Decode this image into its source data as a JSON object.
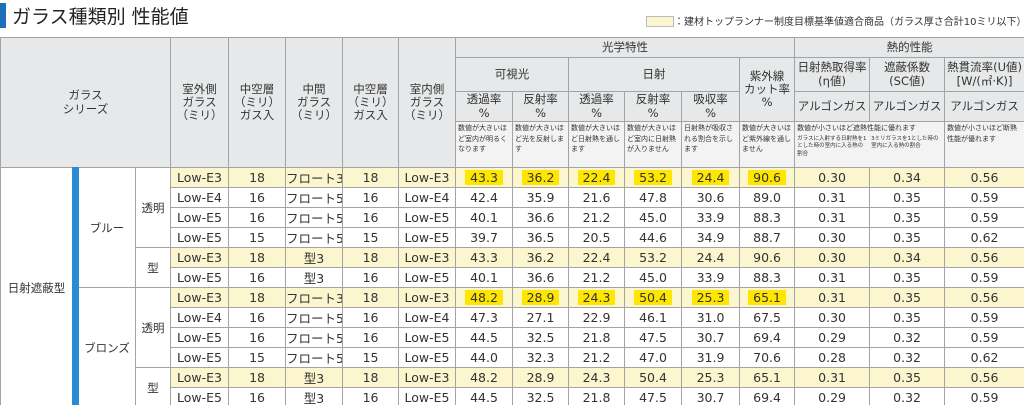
{
  "header": {
    "title": "ガラス種類別 性能値",
    "legend": "：建材トップランナー制度目標基準値適合商品（ガラス厚さ合計10ミリ以下）"
  },
  "table": {
    "highlight_color": "#fcf6cf",
    "mark_color": "#ffe600",
    "head": {
      "series": "ガラス\nシリーズ",
      "glass": [
        "室外側\nガラス\n（ミリ）",
        "中空層\n（ミリ）\nガス入",
        "中間\nガラス\n（ミリ）",
        "中空層\n（ミリ）\nガス入",
        "室内側\nガラス\n（ミリ）"
      ],
      "optical": {
        "title": "光学特性",
        "visible": "可視光",
        "solar": "日射",
        "uv": "紫外線\nカット率\n%",
        "columns": [
          "透過率\n%",
          "反射率\n%",
          "透過率\n%",
          "反射率\n%",
          "吸収率\n%"
        ],
        "notes": [
          "数値が大きいほど室内が明るくなります",
          "数値が大きいほど光を反射します",
          "数値が大きいほど日射熱を通します",
          "数値が大きいほど室内に日射熱が入りません",
          "日射熱が吸収される割合を示します",
          "数値が大きいほど紫外線を通しません"
        ]
      },
      "thermal": {
        "title": "熱的性能",
        "columns": [
          "日射熱取得率\n(η値)",
          "遮蔽係数\n(SC値)",
          "熱貫流率(U値)\n[W/(㎡·K)]"
        ],
        "gas": [
          "アルゴンガス",
          "アルゴンガス",
          "アルゴンガス"
        ],
        "note_shading": "数値が小さいほど遮熱性能に優れます",
        "sub_notes": [
          "ガラスに入射する日射熱を1とした時の室内に入る熱の割合",
          "3ミリガラスを1とした時の室内に入る熱の割合"
        ],
        "note_insulation": "数値が小さいほど断熱性能が優れます"
      }
    },
    "groups": [
      {
        "label": "日射遮蔽型",
        "colors": [
          {
            "label": "ブルー",
            "kinds": [
              {
                "label": "透明",
                "rows": [
                  {
                    "highlight": true,
                    "marked": true,
                    "cells": [
                      "Low-E3",
                      "18",
                      "フロート3",
                      "18",
                      "Low-E3",
                      "43.3",
                      "36.2",
                      "22.4",
                      "53.2",
                      "24.4",
                      "90.6",
                      "0.30",
                      "0.34",
                      "0.56"
                    ]
                  },
                  {
                    "highlight": false,
                    "marked": false,
                    "cells": [
                      "Low-E4",
                      "16",
                      "フロート5",
                      "16",
                      "Low-E4",
                      "42.4",
                      "35.9",
                      "21.6",
                      "47.8",
                      "30.6",
                      "89.0",
                      "0.31",
                      "0.35",
                      "0.59"
                    ]
                  },
                  {
                    "highlight": false,
                    "marked": false,
                    "cells": [
                      "Low-E5",
                      "16",
                      "フロート5",
                      "16",
                      "Low-E5",
                      "40.1",
                      "36.6",
                      "21.2",
                      "45.0",
                      "33.9",
                      "88.3",
                      "0.31",
                      "0.35",
                      "0.59"
                    ]
                  },
                  {
                    "highlight": false,
                    "marked": false,
                    "cells": [
                      "Low-E5",
                      "15",
                      "フロート5",
                      "15",
                      "Low-E5",
                      "39.7",
                      "36.5",
                      "20.5",
                      "44.6",
                      "34.9",
                      "88.7",
                      "0.30",
                      "0.35",
                      "0.62"
                    ]
                  }
                ]
              },
              {
                "label": "型",
                "rows": [
                  {
                    "highlight": true,
                    "marked": false,
                    "cells": [
                      "Low-E3",
                      "18",
                      "型3",
                      "18",
                      "Low-E3",
                      "43.3",
                      "36.2",
                      "22.4",
                      "53.2",
                      "24.4",
                      "90.6",
                      "0.30",
                      "0.34",
                      "0.56"
                    ]
                  },
                  {
                    "highlight": false,
                    "marked": false,
                    "cells": [
                      "Low-E5",
                      "16",
                      "型3",
                      "16",
                      "Low-E5",
                      "40.1",
                      "36.6",
                      "21.2",
                      "45.0",
                      "33.9",
                      "88.3",
                      "0.31",
                      "0.35",
                      "0.59"
                    ]
                  }
                ]
              }
            ]
          },
          {
            "label": "ブロンズ",
            "kinds": [
              {
                "label": "透明",
                "rows": [
                  {
                    "highlight": true,
                    "marked": true,
                    "cells": [
                      "Low-E3",
                      "18",
                      "フロート3",
                      "18",
                      "Low-E3",
                      "48.2",
                      "28.9",
                      "24.3",
                      "50.4",
                      "25.3",
                      "65.1",
                      "0.31",
                      "0.35",
                      "0.56"
                    ]
                  },
                  {
                    "highlight": false,
                    "marked": false,
                    "cells": [
                      "Low-E4",
                      "16",
                      "フロート5",
                      "16",
                      "Low-E4",
                      "47.3",
                      "27.1",
                      "22.9",
                      "46.1",
                      "31.0",
                      "67.5",
                      "0.30",
                      "0.35",
                      "0.59"
                    ]
                  },
                  {
                    "highlight": false,
                    "marked": false,
                    "cells": [
                      "Low-E5",
                      "16",
                      "フロート5",
                      "16",
                      "Low-E5",
                      "44.5",
                      "32.5",
                      "21.8",
                      "47.5",
                      "30.7",
                      "69.4",
                      "0.29",
                      "0.32",
                      "0.59"
                    ]
                  },
                  {
                    "highlight": false,
                    "marked": false,
                    "cells": [
                      "Low-E5",
                      "15",
                      "フロート5",
                      "15",
                      "Low-E5",
                      "44.0",
                      "32.3",
                      "21.2",
                      "47.0",
                      "31.9",
                      "70.6",
                      "0.28",
                      "0.32",
                      "0.62"
                    ]
                  }
                ]
              },
              {
                "label": "型",
                "rows": [
                  {
                    "highlight": true,
                    "marked": false,
                    "cells": [
                      "Low-E3",
                      "18",
                      "型3",
                      "18",
                      "Low-E3",
                      "48.2",
                      "28.9",
                      "24.3",
                      "50.4",
                      "25.3",
                      "65.1",
                      "0.31",
                      "0.35",
                      "0.56"
                    ]
                  },
                  {
                    "highlight": false,
                    "marked": false,
                    "cells": [
                      "Low-E5",
                      "16",
                      "型3",
                      "16",
                      "Low-E5",
                      "44.5",
                      "32.5",
                      "21.8",
                      "47.5",
                      "30.7",
                      "69.4",
                      "0.29",
                      "0.32",
                      "0.59"
                    ]
                  }
                ]
              }
            ]
          }
        ]
      }
    ]
  }
}
